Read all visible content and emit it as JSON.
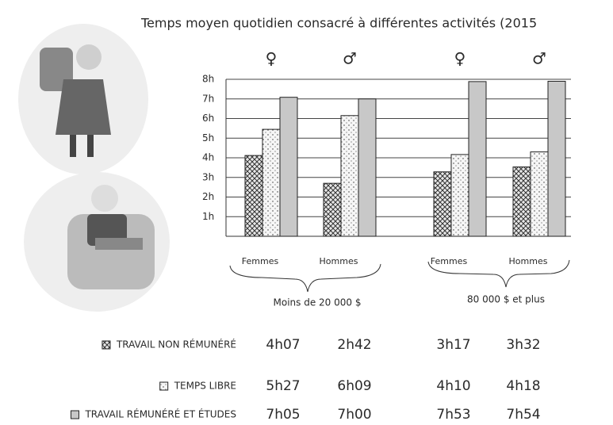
{
  "chart_data": {
    "type": "bar",
    "title": "Temps moyen quotidien consacré à différentes activités (2015",
    "categories": [
      "Femmes",
      "Hommes",
      "Femmes",
      "Hommes"
    ],
    "symbols": [
      "♀",
      "♂",
      "♀",
      "♂"
    ],
    "groups": [
      "Moins de 20 000 $",
      "80 000 $ et plus"
    ],
    "series": [
      {
        "name": "TRAVAIL NON RÉMUNÉRÉ",
        "color": "#555555",
        "pattern": "crosshatch",
        "values": [
          4.1167,
          2.7,
          3.2833,
          3.5333
        ],
        "value_labels": [
          "4h07",
          "2h42",
          "3h17",
          "3h32"
        ]
      },
      {
        "name": "TEMPS LIBRE",
        "color": "#f4f4f4",
        "pattern": "dots",
        "values": [
          5.45,
          6.15,
          4.1667,
          4.3
        ],
        "value_labels": [
          "5h27",
          "6h09",
          "4h10",
          "4h18"
        ]
      },
      {
        "name": "TRAVAIL RÉMUNÉRÉ ET ÉTUDES",
        "color": "#c8c8c8",
        "pattern": "solid",
        "values": [
          7.0833,
          7,
          7.8833,
          7.9
        ],
        "value_labels": [
          "7h05",
          "7h00",
          "7h53",
          "7h54"
        ]
      }
    ],
    "ylim": [
      0,
      8
    ],
    "yticks": [
      {
        "value": 1,
        "label": "1h"
      },
      {
        "value": 2,
        "label": "2h"
      },
      {
        "value": 3,
        "label": "3h"
      },
      {
        "value": 4,
        "label": "4h"
      },
      {
        "value": 5,
        "label": "5h"
      },
      {
        "value": 6,
        "label": "6h"
      },
      {
        "value": 7,
        "label": "7h"
      },
      {
        "value": 8,
        "label": "8h"
      }
    ],
    "grid": true
  }
}
